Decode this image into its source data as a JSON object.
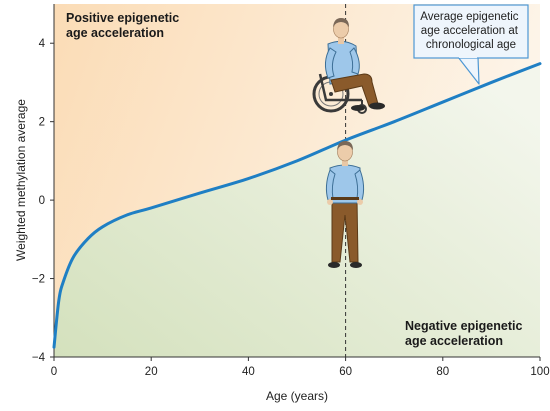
{
  "chart_data": {
    "type": "line",
    "xlabel": "Age (years)",
    "ylabel": "Weighted methylation average",
    "xlim": [
      0,
      100
    ],
    "ylim": [
      -4,
      5
    ],
    "xticks": [
      0,
      20,
      40,
      60,
      80,
      100
    ],
    "yticks": [
      -4,
      -2,
      0,
      2,
      4
    ],
    "grid": false,
    "series": [
      {
        "x": [
          0,
          1,
          2,
          4,
          7,
          10,
          15,
          20,
          30,
          40,
          50,
          60,
          70,
          80,
          90,
          100
        ],
        "y": [
          -3.75,
          -2.55,
          -2.05,
          -1.45,
          -0.98,
          -0.68,
          -0.38,
          -0.2,
          0.18,
          0.55,
          1.0,
          1.53,
          2.0,
          2.5,
          3.0,
          3.48
        ]
      }
    ],
    "reference_line": {
      "x": 60,
      "style": "dashed"
    },
    "annotations": {
      "positive": "Positive epigenetic\nage acceleration",
      "negative": "Negative epigenetic\nage acceleration",
      "callout": "Average epigenetic\nage acceleration at\nchronological age"
    },
    "colors": {
      "line": "#1f7fc4",
      "positive_region": "#fbe3c6",
      "negative_region": "#e3ecd3",
      "callout_border": "#4d97d4",
      "callout_fill": "#eef5fc"
    }
  },
  "illustrations": {
    "upper_person": "person-in-wheelchair-icon",
    "lower_person": "standing-person-icon"
  }
}
